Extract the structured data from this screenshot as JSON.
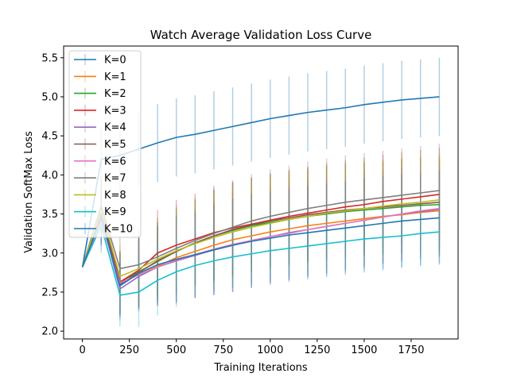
{
  "chart_data": {
    "type": "line",
    "title": "Watch Average Validation Loss Curve",
    "xlabel": "Training Iterations",
    "ylabel": "Validation SoftMax Loss",
    "xlim": [
      -100,
      2000
    ],
    "ylim": [
      1.9,
      5.65
    ],
    "xticks": [
      0,
      250,
      500,
      750,
      1000,
      1250,
      1500,
      1750
    ],
    "xtick_labels": [
      "0",
      "250",
      "500",
      "750",
      "1000",
      "1250",
      "1500",
      "1750"
    ],
    "yticks": [
      2.0,
      2.5,
      3.0,
      3.5,
      4.0,
      4.5,
      5.0,
      5.5
    ],
    "ytick_labels": [
      "2.0",
      "2.5",
      "3.0",
      "3.5",
      "4.0",
      "4.5",
      "5.0",
      "5.5"
    ],
    "grid": false,
    "legend_position": "top-left",
    "x": [
      0,
      100,
      200,
      300,
      400,
      500,
      600,
      700,
      800,
      900,
      1000,
      1100,
      1200,
      1300,
      1400,
      1500,
      1600,
      1700,
      1800,
      1900
    ],
    "series": [
      {
        "name": "K=0",
        "color": "#1f77b4",
        "values": [
          2.82,
          4.2,
          4.25,
          4.33,
          4.41,
          4.48,
          4.52,
          4.57,
          4.62,
          4.67,
          4.72,
          4.76,
          4.8,
          4.83,
          4.86,
          4.9,
          4.93,
          4.96,
          4.98,
          5.0
        ],
        "err": [
          0.0,
          0.4,
          0.45,
          0.47,
          0.5,
          0.5,
          0.5,
          0.5,
          0.5,
          0.5,
          0.5,
          0.5,
          0.5,
          0.5,
          0.5,
          0.5,
          0.5,
          0.5,
          0.5,
          0.5
        ]
      },
      {
        "name": "K=1",
        "color": "#ff7f0e",
        "values": [
          2.82,
          3.5,
          2.62,
          2.72,
          2.83,
          2.94,
          3.02,
          3.1,
          3.17,
          3.22,
          3.27,
          3.31,
          3.35,
          3.38,
          3.41,
          3.44,
          3.47,
          3.49,
          3.52,
          3.54
        ],
        "err": [
          0.0,
          0.35,
          0.4,
          0.45,
          0.5,
          0.55,
          0.55,
          0.58,
          0.6,
          0.6,
          0.6,
          0.6,
          0.6,
          0.6,
          0.6,
          0.6,
          0.6,
          0.6,
          0.6,
          0.6
        ]
      },
      {
        "name": "K=2",
        "color": "#2ca02c",
        "values": [
          2.82,
          3.55,
          2.63,
          2.76,
          2.89,
          3.02,
          3.13,
          3.22,
          3.29,
          3.35,
          3.39,
          3.43,
          3.47,
          3.5,
          3.53,
          3.55,
          3.57,
          3.59,
          3.61,
          3.62
        ],
        "err": [
          0.0,
          0.35,
          0.4,
          0.45,
          0.5,
          0.55,
          0.55,
          0.58,
          0.6,
          0.6,
          0.6,
          0.6,
          0.6,
          0.6,
          0.6,
          0.6,
          0.6,
          0.6,
          0.6,
          0.6
        ]
      },
      {
        "name": "K=3",
        "color": "#d62728",
        "values": [
          2.82,
          3.6,
          2.63,
          2.78,
          3.0,
          3.1,
          3.18,
          3.26,
          3.32,
          3.37,
          3.42,
          3.47,
          3.51,
          3.55,
          3.59,
          3.62,
          3.66,
          3.69,
          3.72,
          3.75
        ],
        "err": [
          0.0,
          0.35,
          0.4,
          0.45,
          0.55,
          0.58,
          0.58,
          0.6,
          0.6,
          0.6,
          0.6,
          0.6,
          0.6,
          0.6,
          0.6,
          0.6,
          0.6,
          0.6,
          0.6,
          0.6
        ]
      },
      {
        "name": "K=4",
        "color": "#9467bd",
        "values": [
          2.82,
          3.45,
          2.54,
          2.7,
          2.82,
          2.9,
          2.97,
          3.04,
          3.1,
          3.16,
          3.21,
          3.26,
          3.3,
          3.34,
          3.38,
          3.42,
          3.46,
          3.5,
          3.53,
          3.56
        ],
        "err": [
          0.0,
          0.35,
          0.4,
          0.45,
          0.5,
          0.55,
          0.55,
          0.58,
          0.6,
          0.6,
          0.6,
          0.6,
          0.6,
          0.6,
          0.6,
          0.6,
          0.6,
          0.6,
          0.6,
          0.6
        ]
      },
      {
        "name": "K=5",
        "color": "#8c564b",
        "values": [
          2.82,
          3.5,
          2.6,
          2.75,
          2.9,
          3.02,
          3.13,
          3.22,
          3.3,
          3.36,
          3.41,
          3.45,
          3.49,
          3.52,
          3.55,
          3.57,
          3.59,
          3.61,
          3.63,
          3.65
        ],
        "err": [
          0.0,
          0.35,
          0.4,
          0.45,
          0.5,
          0.55,
          0.55,
          0.58,
          0.6,
          0.6,
          0.6,
          0.6,
          0.6,
          0.6,
          0.6,
          0.6,
          0.6,
          0.6,
          0.6,
          0.6
        ]
      },
      {
        "name": "K=6",
        "color": "#e377c2",
        "values": [
          2.82,
          3.4,
          2.62,
          2.72,
          2.82,
          2.91,
          2.98,
          3.05,
          3.11,
          3.16,
          3.21,
          3.25,
          3.3,
          3.34,
          3.38,
          3.42,
          3.46,
          3.5,
          3.54,
          3.57
        ],
        "err": [
          0.0,
          0.35,
          0.4,
          0.45,
          0.5,
          0.55,
          0.55,
          0.58,
          0.6,
          0.6,
          0.6,
          0.6,
          0.6,
          0.6,
          0.6,
          0.6,
          0.6,
          0.6,
          0.6,
          0.6
        ]
      },
      {
        "name": "K=7",
        "color": "#7f7f7f",
        "values": [
          2.82,
          3.6,
          2.8,
          2.85,
          2.95,
          3.06,
          3.16,
          3.25,
          3.33,
          3.41,
          3.47,
          3.52,
          3.57,
          3.61,
          3.65,
          3.68,
          3.71,
          3.74,
          3.77,
          3.8
        ],
        "err": [
          0.0,
          0.35,
          0.4,
          0.45,
          0.5,
          0.55,
          0.55,
          0.58,
          0.6,
          0.6,
          0.6,
          0.6,
          0.6,
          0.6,
          0.6,
          0.6,
          0.6,
          0.6,
          0.6,
          0.6
        ]
      },
      {
        "name": "K=8",
        "color": "#bcbd22",
        "values": [
          2.82,
          3.55,
          2.7,
          2.8,
          2.92,
          3.03,
          3.12,
          3.2,
          3.27,
          3.33,
          3.38,
          3.43,
          3.47,
          3.51,
          3.54,
          3.57,
          3.6,
          3.63,
          3.65,
          3.68
        ],
        "err": [
          0.0,
          0.35,
          0.4,
          0.45,
          0.5,
          0.55,
          0.55,
          0.58,
          0.6,
          0.6,
          0.6,
          0.6,
          0.6,
          0.6,
          0.6,
          0.6,
          0.6,
          0.6,
          0.6,
          0.6
        ]
      },
      {
        "name": "K=9",
        "color": "#17becf",
        "values": [
          2.82,
          3.35,
          2.46,
          2.5,
          2.65,
          2.76,
          2.84,
          2.9,
          2.95,
          2.99,
          3.03,
          3.06,
          3.09,
          3.12,
          3.15,
          3.18,
          3.2,
          3.22,
          3.25,
          3.27
        ],
        "err": [
          0.0,
          0.35,
          0.4,
          0.45,
          0.45,
          0.45,
          0.42,
          0.4,
          0.4,
          0.4,
          0.4,
          0.4,
          0.4,
          0.4,
          0.4,
          0.4,
          0.4,
          0.4,
          0.4,
          0.4
        ]
      },
      {
        "name": "K=10",
        "color": "#1f77b4",
        "values": [
          2.82,
          3.45,
          2.58,
          2.74,
          2.85,
          2.92,
          2.98,
          3.04,
          3.1,
          3.15,
          3.19,
          3.23,
          3.26,
          3.29,
          3.32,
          3.35,
          3.38,
          3.41,
          3.43,
          3.45
        ],
        "err": [
          0.0,
          0.35,
          0.4,
          0.45,
          0.5,
          0.55,
          0.55,
          0.58,
          0.6,
          0.6,
          0.6,
          0.6,
          0.6,
          0.6,
          0.6,
          0.6,
          0.6,
          0.6,
          0.6,
          0.6
        ]
      }
    ]
  }
}
